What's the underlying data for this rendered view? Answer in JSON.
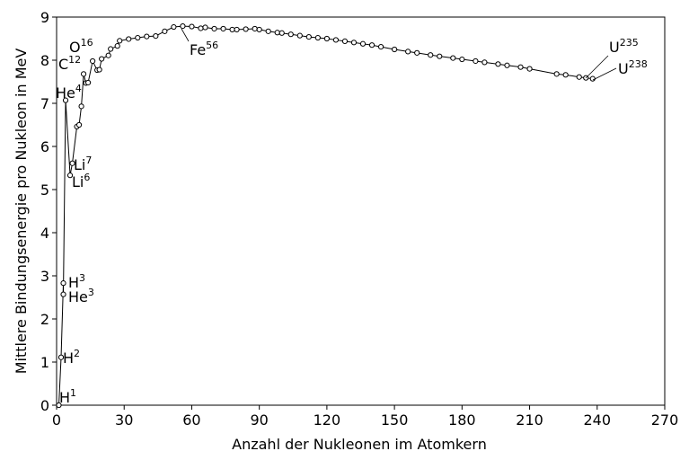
{
  "chart_data": {
    "type": "line",
    "xlabel": "Anzahl der Nukleonen im Atomkern",
    "ylabel": "Mittlere Bindungsenergie pro Nukleon in MeV",
    "x": [
      1,
      2,
      3,
      3,
      4,
      6,
      7,
      9,
      10,
      11,
      12,
      13,
      14,
      16,
      18,
      19,
      20,
      23,
      24,
      27,
      28,
      32,
      36,
      40,
      44,
      48,
      52,
      56,
      60,
      64,
      66,
      70,
      74,
      78,
      80,
      84,
      88,
      90,
      94,
      98,
      100,
      104,
      108,
      112,
      116,
      120,
      124,
      128,
      132,
      136,
      140,
      144,
      150,
      156,
      160,
      166,
      170,
      176,
      180,
      186,
      190,
      196,
      200,
      206,
      210,
      222,
      226,
      232,
      235,
      238
    ],
    "values": [
      0,
      1.11,
      2.83,
      2.57,
      7.07,
      5.33,
      5.61,
      6.46,
      6.5,
      6.93,
      7.68,
      7.47,
      7.48,
      7.98,
      7.77,
      7.78,
      8.03,
      8.11,
      8.26,
      8.33,
      8.45,
      8.49,
      8.52,
      8.55,
      8.56,
      8.67,
      8.77,
      8.79,
      8.78,
      8.74,
      8.76,
      8.73,
      8.73,
      8.71,
      8.71,
      8.72,
      8.73,
      8.71,
      8.67,
      8.64,
      8.63,
      8.6,
      8.57,
      8.54,
      8.52,
      8.5,
      8.47,
      8.44,
      8.41,
      8.38,
      8.35,
      8.31,
      8.25,
      8.2,
      8.17,
      8.12,
      8.09,
      8.05,
      8.02,
      7.98,
      7.95,
      7.91,
      7.88,
      7.84,
      7.8,
      7.68,
      7.66,
      7.61,
      7.59,
      7.57
    ],
    "color": "#000000",
    "xlim": [
      0,
      270
    ],
    "xticks": [
      0,
      30,
      60,
      90,
      120,
      150,
      180,
      210,
      240,
      270
    ],
    "ylim": [
      0,
      9
    ],
    "yticks": [
      0,
      1,
      2,
      3,
      4,
      5,
      6,
      7,
      8,
      9
    ],
    "annotations": [
      {
        "label": "H",
        "sup": "1"
      },
      {
        "label": "H",
        "sup": "2"
      },
      {
        "label": "H",
        "sup": "3"
      },
      {
        "label": "He",
        "sup": "3"
      },
      {
        "label": "He",
        "sup": "4"
      },
      {
        "label": "Li",
        "sup": "7"
      },
      {
        "label": "Li",
        "sup": "6"
      },
      {
        "label": "C",
        "sup": "12"
      },
      {
        "label": "O",
        "sup": "16"
      },
      {
        "label": "Fe",
        "sup": "56"
      },
      {
        "label": "U",
        "sup": "235"
      },
      {
        "label": "U",
        "sup": "238"
      }
    ]
  }
}
